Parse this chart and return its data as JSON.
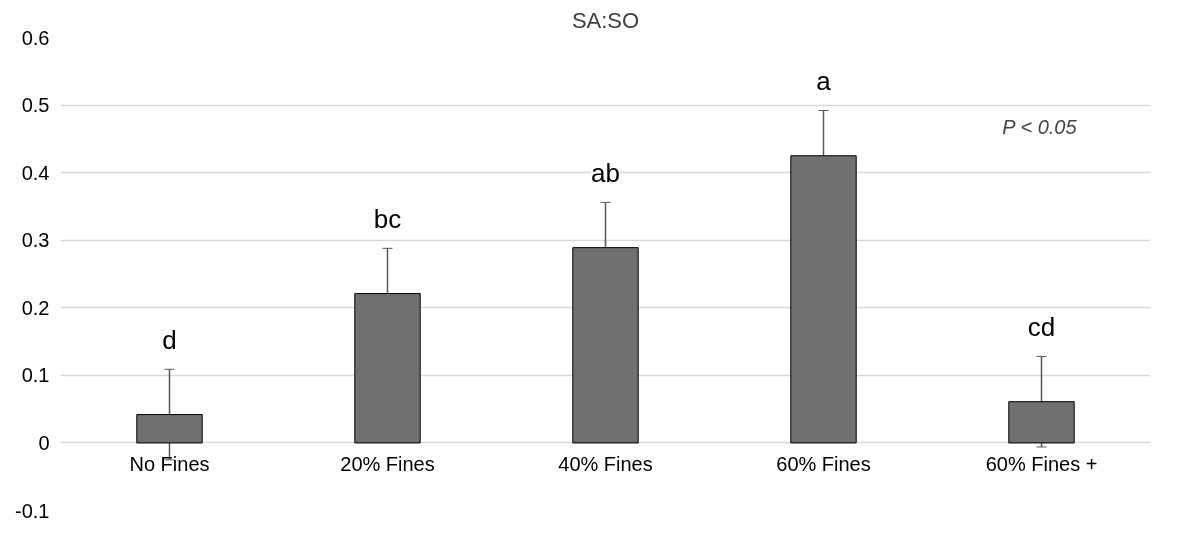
{
  "chart_data": {
    "type": "bar",
    "title": "SA:SO",
    "categories": [
      "No Fines",
      "20% Fines",
      "40% Fines",
      "60% Fines",
      "60% Fines +"
    ],
    "values": [
      0.042,
      0.221,
      0.289,
      0.425,
      0.061
    ],
    "errors": [
      0.067,
      0.067,
      0.067,
      0.067,
      0.067
    ],
    "color": "#707070",
    "ylim": [
      -0.1,
      0.6
    ],
    "yticks": [
      -0.1,
      0,
      0.1,
      0.2,
      0.3,
      0.4,
      0.5,
      0.6
    ],
    "grid": "y",
    "annotations": [
      "d",
      "bc",
      "ab",
      "a",
      "cd",
      "P < 0.05"
    ]
  }
}
